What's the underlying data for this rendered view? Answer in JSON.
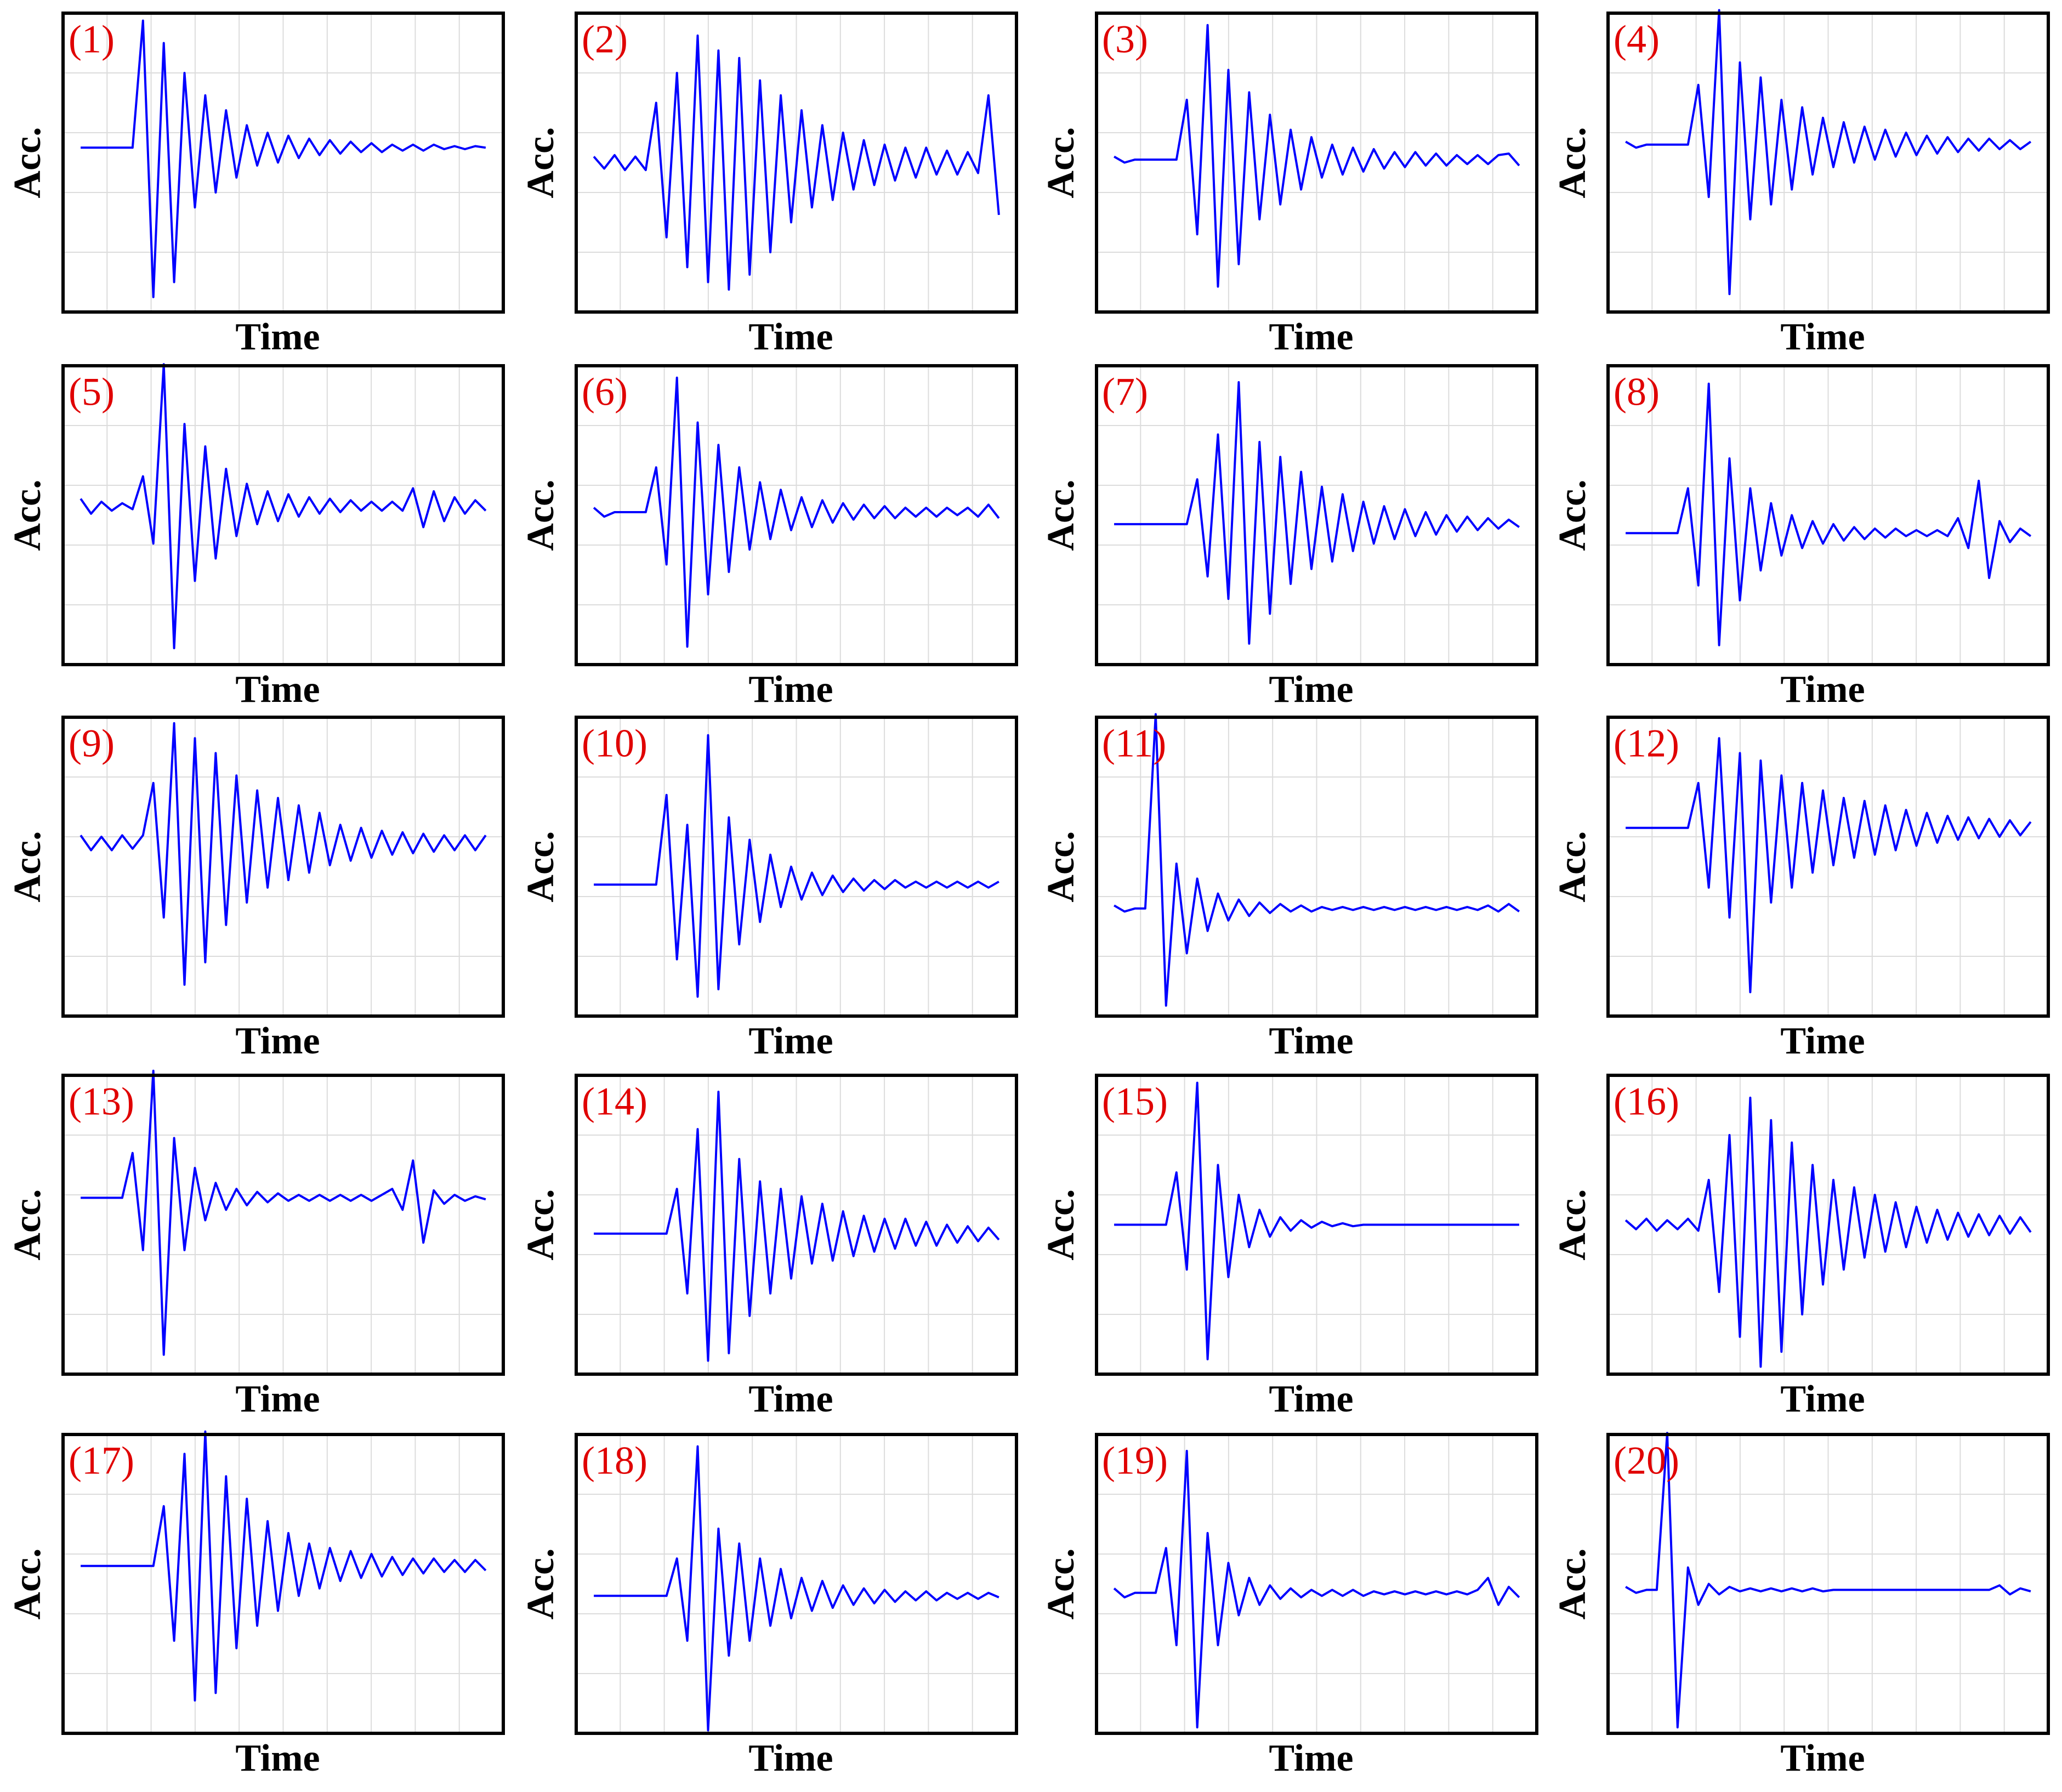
{
  "chart_data": [
    {
      "type": "line",
      "label": "(1)",
      "x_label": "Time",
      "y_label": "Acc.",
      "color": "#0000ff",
      "grid": true,
      "ylim": [
        -1.1,
        0.9
      ],
      "values": [
        0,
        0,
        0,
        0,
        0,
        0,
        0.85,
        -1,
        0.7,
        -0.9,
        0.5,
        -0.4,
        0.35,
        -0.3,
        0.25,
        -0.2,
        0.15,
        -0.12,
        0.1,
        -0.1,
        0.08,
        -0.07,
        0.06,
        -0.05,
        0.05,
        -0.04,
        0.04,
        -0.03,
        0.03,
        -0.03,
        0.02,
        -0.02,
        0.02,
        -0.02,
        0.02,
        -0.01,
        0.01,
        -0.01,
        0.01,
        0
      ]
    },
    {
      "type": "line",
      "label": "(2)",
      "x_label": "Time",
      "y_label": "Acc.",
      "color": "#0000ff",
      "grid": true,
      "ylim": [
        -1,
        1
      ],
      "values": [
        0.04,
        -0.04,
        0.05,
        -0.05,
        0.04,
        -0.05,
        0.4,
        -0.5,
        0.6,
        -0.7,
        0.85,
        -0.8,
        0.75,
        -0.85,
        0.7,
        -0.75,
        0.55,
        -0.6,
        0.45,
        -0.4,
        0.35,
        -0.3,
        0.25,
        -0.25,
        0.2,
        -0.18,
        0.15,
        -0.15,
        0.12,
        -0.12,
        0.1,
        -0.1,
        0.1,
        -0.08,
        0.08,
        -0.08,
        0.07,
        -0.07,
        0.45,
        -0.35
      ]
    },
    {
      "type": "line",
      "label": "(3)",
      "x_label": "Time",
      "y_label": "Acc.",
      "color": "#0000ff",
      "grid": true,
      "ylim": [
        -1.02,
        0.98
      ],
      "values": [
        0.02,
        -0.02,
        0,
        0,
        0,
        0,
        0,
        0.4,
        -0.5,
        0.9,
        -0.85,
        0.6,
        -0.7,
        0.45,
        -0.4,
        0.3,
        -0.3,
        0.2,
        -0.2,
        0.15,
        -0.12,
        0.1,
        -0.1,
        0.08,
        -0.08,
        0.07,
        -0.06,
        0.05,
        -0.05,
        0.05,
        -0.04,
        0.04,
        -0.04,
        0.03,
        -0.03,
        0.03,
        -0.03,
        0.03,
        0.04,
        -0.04
      ]
    },
    {
      "type": "line",
      "label": "(4)",
      "x_label": "Time",
      "y_label": "Acc.",
      "color": "#0000ff",
      "grid": true,
      "ylim": [
        -1.12,
        0.88
      ],
      "values": [
        0.02,
        -0.02,
        0,
        0,
        0,
        0,
        0,
        0.4,
        -0.35,
        0.9,
        -1,
        0.55,
        -0.5,
        0.45,
        -0.4,
        0.3,
        -0.3,
        0.25,
        -0.2,
        0.18,
        -0.15,
        0.15,
        -0.12,
        0.12,
        -0.1,
        0.1,
        -0.08,
        0.08,
        -0.07,
        0.06,
        -0.06,
        0.05,
        -0.05,
        0.04,
        -0.04,
        0.04,
        -0.03,
        0.03,
        -0.03,
        0.02
      ]
    },
    {
      "type": "line",
      "label": "(5)",
      "x_label": "Time",
      "y_label": "Acc.",
      "color": "#0000ff",
      "grid": true,
      "ylim": [
        -1.06,
        0.94
      ],
      "values": [
        0.05,
        -0.05,
        0.03,
        -0.03,
        0.02,
        -0.02,
        0.2,
        -0.25,
        0.95,
        -0.95,
        0.55,
        -0.5,
        0.4,
        -0.35,
        0.25,
        -0.2,
        0.15,
        -0.12,
        0.1,
        -0.1,
        0.08,
        -0.07,
        0.06,
        -0.05,
        0.05,
        -0.04,
        0.04,
        -0.03,
        0.03,
        -0.03,
        0.03,
        -0.03,
        0.12,
        -0.14,
        0.1,
        -0.1,
        0.06,
        -0.05,
        0.04,
        -0.03
      ]
    },
    {
      "type": "line",
      "label": "(6)",
      "x_label": "Time",
      "y_label": "Acc.",
      "color": "#0000ff",
      "grid": true,
      "ylim": [
        -1.02,
        0.98
      ],
      "values": [
        0.03,
        -0.03,
        0,
        0,
        0,
        0,
        0.3,
        -0.35,
        0.9,
        -0.9,
        0.6,
        -0.55,
        0.45,
        -0.4,
        0.3,
        -0.25,
        0.2,
        -0.18,
        0.15,
        -0.12,
        0.1,
        -0.1,
        0.08,
        -0.07,
        0.06,
        -0.05,
        0.05,
        -0.04,
        0.04,
        -0.04,
        0.03,
        -0.03,
        0.03,
        -0.03,
        0.03,
        -0.02,
        0.03,
        -0.03,
        0.05,
        -0.04
      ]
    },
    {
      "type": "line",
      "label": "(7)",
      "x_label": "Time",
      "y_label": "Acc.",
      "color": "#0000ff",
      "grid": true,
      "ylim": [
        -0.94,
        1.06
      ],
      "values": [
        0,
        0,
        0,
        0,
        0,
        0,
        0,
        0,
        0.3,
        -0.35,
        0.6,
        -0.5,
        0.95,
        -0.8,
        0.55,
        -0.6,
        0.45,
        -0.4,
        0.35,
        -0.3,
        0.25,
        -0.25,
        0.2,
        -0.18,
        0.15,
        -0.13,
        0.12,
        -0.1,
        0.1,
        -0.08,
        0.08,
        -0.07,
        0.06,
        -0.05,
        0.05,
        -0.04,
        0.04,
        -0.03,
        0.03,
        -0.02
      ]
    },
    {
      "type": "line",
      "label": "(8)",
      "x_label": "Time",
      "y_label": "Acc.",
      "color": "#0000ff",
      "grid": true,
      "ylim": [
        -0.88,
        1.12
      ],
      "values": [
        0,
        0,
        0,
        0,
        0,
        0,
        0.3,
        -0.35,
        1,
        -0.75,
        0.5,
        -0.45,
        0.3,
        -0.25,
        0.2,
        -0.15,
        0.12,
        -0.1,
        0.08,
        -0.07,
        0.06,
        -0.05,
        0.04,
        -0.04,
        0.03,
        -0.03,
        0.03,
        -0.02,
        0.02,
        -0.02,
        0.02,
        -0.02,
        0.1,
        -0.1,
        0.35,
        -0.3,
        0.08,
        -0.06,
        0.03,
        -0.02
      ]
    },
    {
      "type": "line",
      "label": "(9)",
      "x_label": "Time",
      "y_label": "Acc.",
      "color": "#0000ff",
      "grid": true,
      "ylim": [
        -1.16,
        0.84
      ],
      "values": [
        0.05,
        -0.05,
        0.04,
        -0.05,
        0.05,
        -0.04,
        0.05,
        0.4,
        -0.5,
        0.8,
        -0.95,
        0.7,
        -0.8,
        0.6,
        -0.55,
        0.45,
        -0.4,
        0.35,
        -0.3,
        0.3,
        -0.25,
        0.25,
        -0.2,
        0.2,
        -0.15,
        0.12,
        -0.12,
        0.1,
        -0.1,
        0.08,
        -0.08,
        0.07,
        -0.07,
        0.06,
        -0.06,
        0.05,
        -0.05,
        0.05,
        -0.05,
        0.05
      ]
    },
    {
      "type": "line",
      "label": "(10)",
      "x_label": "Time",
      "y_label": "Acc.",
      "color": "#0000ff",
      "grid": true,
      "ylim": [
        -0.88,
        1.12
      ],
      "values": [
        0,
        0,
        0,
        0,
        0,
        0,
        0,
        0.6,
        -0.5,
        0.4,
        -0.75,
        1,
        -0.7,
        0.45,
        -0.4,
        0.3,
        -0.25,
        0.2,
        -0.15,
        0.12,
        -0.1,
        0.08,
        -0.07,
        0.06,
        -0.05,
        0.04,
        -0.04,
        0.03,
        -0.03,
        0.03,
        -0.02,
        0.02,
        -0.02,
        0.02,
        -0.02,
        0.02,
        -0.02,
        0.02,
        -0.02,
        0.02
      ]
    },
    {
      "type": "line",
      "label": "(11)",
      "x_label": "Time",
      "y_label": "Acc.",
      "color": "#0000ff",
      "grid": true,
      "ylim": [
        -0.72,
        1.28
      ],
      "values": [
        0.02,
        -0.02,
        0,
        0,
        1.3,
        -0.65,
        0.3,
        -0.3,
        0.2,
        -0.15,
        0.1,
        -0.08,
        0.06,
        -0.05,
        0.04,
        -0.03,
        0.03,
        -0.02,
        0.02,
        -0.02,
        0.01,
        -0.01,
        0.01,
        -0.01,
        0.01,
        -0.01,
        0.01,
        -0.01,
        0.01,
        -0.01,
        0.01,
        -0.01,
        0.01,
        -0.01,
        0.01,
        -0.01,
        0.02,
        -0.02,
        0.03,
        -0.02
      ]
    },
    {
      "type": "line",
      "label": "(12)",
      "x_label": "Time",
      "y_label": "Acc.",
      "color": "#0000ff",
      "grid": true,
      "ylim": [
        -1.26,
        0.74
      ],
      "values": [
        0,
        0,
        0,
        0,
        0,
        0,
        0,
        0.3,
        -0.4,
        0.6,
        -0.6,
        0.5,
        -1.1,
        0.45,
        -0.5,
        0.35,
        -0.4,
        0.3,
        -0.3,
        0.25,
        -0.25,
        0.2,
        -0.2,
        0.18,
        -0.18,
        0.15,
        -0.15,
        0.12,
        -0.12,
        0.1,
        -0.1,
        0.08,
        -0.08,
        0.07,
        -0.07,
        0.06,
        -0.06,
        0.05,
        -0.05,
        0.04
      ]
    },
    {
      "type": "line",
      "label": "(13)",
      "x_label": "Time",
      "y_label": "Acc.",
      "color": "#0000ff",
      "grid": true,
      "ylim": [
        -1.18,
        0.82
      ],
      "values": [
        0,
        0,
        0,
        0,
        0,
        0.3,
        -0.35,
        0.85,
        -1.05,
        0.4,
        -0.35,
        0.2,
        -0.15,
        0.1,
        -0.08,
        0.06,
        -0.05,
        0.04,
        -0.03,
        0.03,
        -0.02,
        0.02,
        -0.02,
        0.02,
        -0.02,
        0.02,
        -0.02,
        0.02,
        -0.02,
        0.02,
        0.06,
        -0.08,
        0.25,
        -0.3,
        0.05,
        -0.04,
        0.02,
        -0.02,
        0.01,
        -0.01
      ]
    },
    {
      "type": "line",
      "label": "(14)",
      "x_label": "Time",
      "y_label": "Acc.",
      "color": "#0000ff",
      "grid": true,
      "ylim": [
        -0.94,
        1.06
      ],
      "values": [
        0,
        0,
        0,
        0,
        0,
        0,
        0,
        0,
        0.3,
        -0.4,
        0.7,
        -0.85,
        0.95,
        -0.8,
        0.5,
        -0.55,
        0.35,
        -0.4,
        0.3,
        -0.3,
        0.25,
        -0.2,
        0.2,
        -0.18,
        0.15,
        -0.15,
        0.12,
        -0.12,
        0.1,
        -0.1,
        0.1,
        -0.08,
        0.08,
        -0.08,
        0.06,
        -0.06,
        0.05,
        -0.05,
        0.04,
        -0.04
      ]
    },
    {
      "type": "line",
      "label": "(15)",
      "x_label": "Time",
      "y_label": "Acc.",
      "color": "#0000ff",
      "grid": true,
      "ylim": [
        -1,
        1
      ],
      "values": [
        0,
        0,
        0,
        0,
        0,
        0,
        0.35,
        -0.3,
        0.95,
        -0.9,
        0.4,
        -0.35,
        0.2,
        -0.15,
        0.1,
        -0.08,
        0.05,
        -0.04,
        0.03,
        -0.02,
        0.02,
        -0.01,
        0.01,
        -0.01,
        0,
        0,
        0,
        0,
        0,
        0,
        0,
        0,
        0,
        0,
        0,
        0,
        0,
        0,
        0,
        0
      ]
    },
    {
      "type": "line",
      "label": "(16)",
      "x_label": "Time",
      "y_label": "Acc.",
      "color": "#0000ff",
      "grid": true,
      "ylim": [
        -1,
        1
      ],
      "values": [
        0.03,
        -0.03,
        0.04,
        -0.04,
        0.03,
        -0.03,
        0.04,
        -0.04,
        0.3,
        -0.45,
        0.6,
        -0.75,
        0.85,
        -0.95,
        0.7,
        -0.85,
        0.55,
        -0.6,
        0.4,
        -0.4,
        0.3,
        -0.3,
        0.25,
        -0.22,
        0.2,
        -0.18,
        0.15,
        -0.15,
        0.12,
        -0.12,
        0.1,
        -0.1,
        0.08,
        -0.08,
        0.07,
        -0.07,
        0.06,
        -0.06,
        0.05,
        -0.05
      ]
    },
    {
      "type": "line",
      "label": "(17)",
      "x_label": "Time",
      "y_label": "Acc.",
      "color": "#0000ff",
      "grid": true,
      "ylim": [
        -1.12,
        0.88
      ],
      "values": [
        0,
        0,
        0,
        0,
        0,
        0,
        0,
        0,
        0.4,
        -0.5,
        0.75,
        -0.9,
        0.9,
        -0.85,
        0.6,
        -0.55,
        0.45,
        -0.4,
        0.3,
        -0.3,
        0.22,
        -0.2,
        0.15,
        -0.15,
        0.12,
        -0.1,
        0.1,
        -0.08,
        0.08,
        -0.07,
        0.06,
        -0.06,
        0.05,
        -0.05,
        0.05,
        -0.04,
        0.04,
        -0.04,
        0.04,
        -0.03
      ]
    },
    {
      "type": "line",
      "label": "(18)",
      "x_label": "Time",
      "y_label": "Acc.",
      "color": "#0000ff",
      "grid": true,
      "ylim": [
        -0.92,
        1.08
      ],
      "values": [
        0,
        0,
        0,
        0,
        0,
        0,
        0,
        0,
        0.25,
        -0.3,
        1,
        -0.9,
        0.45,
        -0.4,
        0.35,
        -0.3,
        0.25,
        -0.2,
        0.18,
        -0.15,
        0.12,
        -0.1,
        0.1,
        -0.08,
        0.07,
        -0.06,
        0.05,
        -0.05,
        0.04,
        -0.04,
        0.03,
        -0.03,
        0.03,
        -0.03,
        0.02,
        -0.02,
        0.02,
        -0.02,
        0.02,
        -0.01
      ]
    },
    {
      "type": "line",
      "label": "(19)",
      "x_label": "Time",
      "y_label": "Acc.",
      "color": "#0000ff",
      "grid": true,
      "ylim": [
        -0.94,
        1.06
      ],
      "values": [
        0.03,
        -0.03,
        0,
        0,
        0,
        0.3,
        -0.35,
        0.95,
        -0.9,
        0.4,
        -0.35,
        0.2,
        -0.15,
        0.1,
        -0.08,
        0.05,
        -0.04,
        0.03,
        -0.03,
        0.02,
        -0.02,
        0.02,
        -0.02,
        0.02,
        -0.02,
        0.01,
        -0.01,
        0.01,
        -0.01,
        0.01,
        -0.01,
        0.01,
        -0.01,
        0.01,
        -0.01,
        0.02,
        0.1,
        -0.08,
        0.04,
        -0.03
      ]
    },
    {
      "type": "line",
      "label": "(20)",
      "x_label": "Time",
      "y_label": "Acc.",
      "color": "#0000ff",
      "grid": true,
      "ylim": [
        -0.96,
        1.04
      ],
      "values": [
        0.02,
        -0.02,
        0,
        0,
        1.05,
        -0.92,
        0.15,
        -0.1,
        0.04,
        -0.03,
        0.02,
        -0.01,
        0.01,
        -0.01,
        0.01,
        -0.01,
        0.01,
        -0.01,
        0.01,
        -0.01,
        0,
        0,
        0,
        0,
        0,
        0,
        0,
        0,
        0,
        0,
        0,
        0,
        0,
        0,
        0,
        0,
        0.03,
        -0.03,
        0.01,
        -0.01
      ]
    }
  ]
}
